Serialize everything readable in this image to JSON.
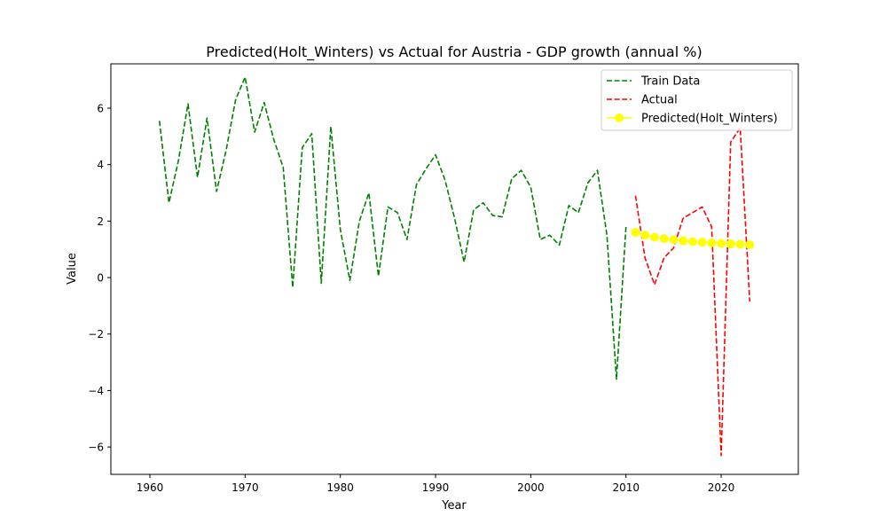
{
  "chart_data": {
    "type": "line",
    "title": "Predicted(Holt_Winters) vs Actual for Austria - GDP growth (annual %)",
    "xlabel": "Year",
    "ylabel": "Value",
    "xlim": [
      1955.9,
      2028.1
    ],
    "ylim": [
      -6.97,
      7.57
    ],
    "x_ticks": [
      1960,
      1970,
      1980,
      1990,
      2000,
      2010,
      2020
    ],
    "x_tick_labels": [
      "1960",
      "1970",
      "1980",
      "1990",
      "2000",
      "2010",
      "2020"
    ],
    "y_ticks": [
      -6,
      -4,
      -2,
      0,
      2,
      4,
      6
    ],
    "y_tick_labels": [
      "−6",
      "−4",
      "−2",
      "0",
      "2",
      "4",
      "6"
    ],
    "grid": false,
    "legend_position": "top-right",
    "series": [
      {
        "name": "Train Data",
        "color": "#008000",
        "style": "dashed",
        "marker": "none",
        "x": [
          1961,
          1962,
          1963,
          1964,
          1965,
          1966,
          1967,
          1968,
          1969,
          1970,
          1971,
          1972,
          1973,
          1974,
          1975,
          1976,
          1977,
          1978,
          1979,
          1980,
          1981,
          1982,
          1983,
          1984,
          1985,
          1986,
          1987,
          1988,
          1989,
          1990,
          1991,
          1992,
          1993,
          1994,
          1995,
          1996,
          1997,
          1998,
          1999,
          2000,
          2001,
          2002,
          2003,
          2004,
          2005,
          2006,
          2007,
          2008,
          2009,
          2010
        ],
        "y": [
          5.55,
          2.65,
          4.15,
          6.15,
          3.55,
          5.65,
          3.05,
          4.5,
          6.3,
          7.1,
          5.15,
          6.2,
          4.9,
          3.9,
          -0.35,
          4.6,
          5.1,
          -0.2,
          5.35,
          1.7,
          -0.1,
          2.0,
          3.0,
          0.05,
          2.5,
          2.3,
          1.35,
          3.3,
          3.85,
          4.35,
          3.45,
          2.1,
          0.55,
          2.4,
          2.65,
          2.2,
          2.15,
          3.5,
          3.8,
          3.2,
          1.35,
          1.5,
          1.15,
          2.55,
          2.3,
          3.35,
          3.8,
          1.5,
          -3.6,
          1.8
        ]
      },
      {
        "name": "Actual",
        "color": "#ff0000",
        "style": "dashed",
        "marker": "none",
        "x": [
          2011,
          2012,
          2013,
          2014,
          2015,
          2016,
          2017,
          2018,
          2019,
          2020,
          2021,
          2022,
          2023
        ],
        "y": [
          2.9,
          0.7,
          -0.25,
          0.7,
          1.05,
          2.1,
          2.3,
          2.5,
          1.8,
          -6.3,
          4.8,
          5.3,
          -0.85
        ]
      },
      {
        "name": "Predicted(Holt_Winters)",
        "color": "#ffff00",
        "style": "solid",
        "marker": "circle",
        "x": [
          2011,
          2012,
          2013,
          2014,
          2015,
          2016,
          2017,
          2018,
          2019,
          2020,
          2021,
          2022,
          2023
        ],
        "y": [
          1.6,
          1.5,
          1.43,
          1.38,
          1.34,
          1.3,
          1.27,
          1.25,
          1.23,
          1.21,
          1.19,
          1.18,
          1.16
        ]
      }
    ]
  }
}
